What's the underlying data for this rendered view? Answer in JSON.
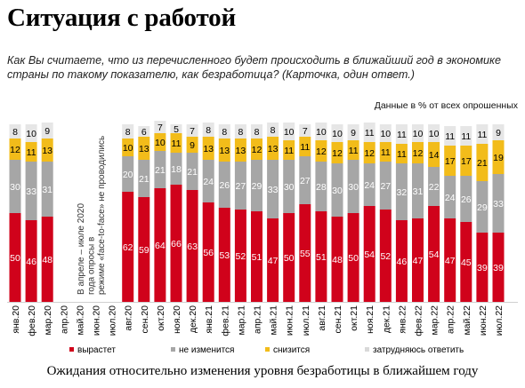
{
  "title": "Ситуация с работой",
  "question": "Как Вы считаете, что из перечисленного будет происходить в ближайший год в экономике страны по такому показателю, как безработица? (Карточка, один ответ.)",
  "note": "Данные в % от всех опрошенных",
  "caption": "Ожидания относительно изменения уровня безработицы в ближайшем году",
  "gap_note": "В апреле – июле 2020 года опросы в режиме «face-to-face» не проводились",
  "colors": {
    "rise": "#d0021b",
    "same": "#a6a6a6",
    "fall": "#f2bc1a",
    "hard": "#e6e6e6"
  },
  "chart_data": {
    "type": "bar",
    "stacked": true,
    "categories": [
      "янв.20",
      "фев.20",
      "мар.20",
      "апр.20",
      "май.20",
      "июн.20",
      "июл.20",
      "авг.20",
      "сен.20",
      "окт.20",
      "ноя.20",
      "дек.20",
      "янв.21",
      "фев.21",
      "мар.21",
      "апр.21",
      "май.21",
      "июн.21",
      "июл.21",
      "авг.21",
      "сен.21",
      "окт.21",
      "ноя.21",
      "дек.21",
      "янв.22",
      "фев.22",
      "мар.22",
      "апр.22",
      "май.22",
      "июн.22",
      "июл.22"
    ],
    "series": [
      {
        "name": "вырастет",
        "values": [
          50,
          46,
          48,
          null,
          null,
          null,
          null,
          62,
          59,
          64,
          66,
          63,
          56,
          53,
          52,
          51,
          47,
          50,
          55,
          51,
          48,
          50,
          54,
          52,
          46,
          47,
          54,
          47,
          45,
          39,
          39
        ]
      },
      {
        "name": "не изменится",
        "values": [
          30,
          33,
          31,
          null,
          null,
          null,
          null,
          20,
          21,
          21,
          18,
          21,
          24,
          26,
          27,
          29,
          33,
          30,
          27,
          28,
          30,
          30,
          24,
          27,
          32,
          31,
          22,
          24,
          26,
          29,
          33
        ]
      },
      {
        "name": "снизится",
        "values": [
          12,
          11,
          13,
          null,
          null,
          null,
          null,
          10,
          13,
          10,
          11,
          9,
          13,
          13,
          13,
          12,
          13,
          11,
          11,
          12,
          12,
          11,
          12,
          11,
          11,
          12,
          14,
          17,
          17,
          21,
          19
        ]
      },
      {
        "name": "затрудняюсь ответить",
        "values": [
          8,
          10,
          9,
          null,
          null,
          null,
          null,
          8,
          6,
          7,
          5,
          7,
          8,
          8,
          8,
          8,
          8,
          10,
          7,
          10,
          10,
          9,
          11,
          10,
          11,
          10,
          10,
          11,
          11,
          11,
          9
        ]
      }
    ],
    "ylim": [
      0,
      100
    ],
    "legend": "bottom"
  }
}
